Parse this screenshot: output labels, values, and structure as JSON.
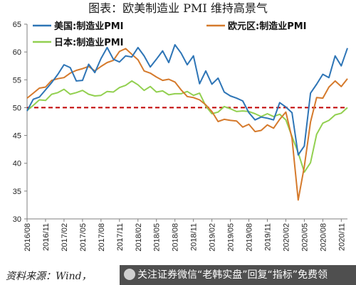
{
  "title": "图表：欧美制造业 PMI 维持高景气",
  "footer": {
    "source": "资料来源：Wind，",
    "banner": "关注证券微信“老韩实盘”回复“指标”免费领"
  },
  "colors": {
    "us": "#2e75b6",
    "eu": "#d57a2c",
    "jp": "#92d050",
    "ref": "#c00000",
    "axis": "#7f7f7f"
  },
  "chart_data": {
    "type": "line",
    "title": "图表：欧美制造业 PMI 维持高景气",
    "xlabel": "",
    "ylabel": "",
    "ylim": [
      30,
      65
    ],
    "yticks": [
      30,
      35,
      40,
      45,
      50,
      55,
      60,
      65
    ],
    "xtick_labels": [
      "2016/08",
      "2016/11",
      "2017/02",
      "2017/05",
      "2017/08",
      "2017/11",
      "2018/02",
      "2018/05",
      "2018/08",
      "2018/11",
      "2019/02",
      "2019/05",
      "2019/08",
      "2019/11",
      "2020/02",
      "2020/05",
      "2020/08",
      "2020/11"
    ],
    "legend_position": "top",
    "grid": false,
    "reference_line": {
      "y": 50,
      "style": "dashed"
    },
    "x": [
      "2016/08",
      "2016/09",
      "2016/10",
      "2016/11",
      "2016/12",
      "2017/01",
      "2017/02",
      "2017/03",
      "2017/04",
      "2017/05",
      "2017/06",
      "2017/07",
      "2017/08",
      "2017/09",
      "2017/10",
      "2017/11",
      "2017/12",
      "2018/01",
      "2018/02",
      "2018/03",
      "2018/04",
      "2018/05",
      "2018/06",
      "2018/07",
      "2018/08",
      "2018/09",
      "2018/10",
      "2018/11",
      "2018/12",
      "2019/01",
      "2019/02",
      "2019/03",
      "2019/04",
      "2019/05",
      "2019/06",
      "2019/07",
      "2019/08",
      "2019/09",
      "2019/10",
      "2019/11",
      "2019/12",
      "2020/01",
      "2020/02",
      "2020/03",
      "2020/04",
      "2020/05",
      "2020/06",
      "2020/07",
      "2020/08",
      "2020/09",
      "2020/10",
      "2020/11",
      "2020/12"
    ],
    "series": [
      {
        "name": "美国:制造业PMI",
        "color": "#2e75b6",
        "values": [
          49.4,
          51.5,
          51.9,
          53.2,
          54.5,
          56.0,
          57.7,
          57.2,
          54.8,
          54.9,
          57.8,
          56.3,
          58.8,
          60.8,
          58.7,
          58.2,
          59.3,
          59.1,
          60.8,
          59.3,
          57.3,
          58.7,
          60.2,
          58.1,
          61.3,
          59.8,
          57.7,
          59.3,
          54.3,
          56.6,
          54.2,
          55.3,
          52.8,
          52.1,
          51.7,
          51.2,
          49.1,
          47.8,
          48.3,
          48.1,
          47.8,
          50.9,
          50.1,
          49.1,
          41.5,
          43.1,
          52.6,
          54.2,
          56.0,
          55.4,
          59.3,
          57.5,
          60.7
        ]
      },
      {
        "name": "欧元区:制造业PMI",
        "color": "#d57a2c",
        "values": [
          51.7,
          52.6,
          53.5,
          53.7,
          54.9,
          55.2,
          55.4,
          56.2,
          56.7,
          57.0,
          57.4,
          56.6,
          57.4,
          58.1,
          58.5,
          60.1,
          60.6,
          59.6,
          58.6,
          56.6,
          56.2,
          55.5,
          54.9,
          55.1,
          54.6,
          53.2,
          52.0,
          51.8,
          51.4,
          50.5,
          49.3,
          47.5,
          47.9,
          47.7,
          47.6,
          46.5,
          47.0,
          45.7,
          45.9,
          46.9,
          46.3,
          47.9,
          49.2,
          44.5,
          33.4,
          39.4,
          47.4,
          51.8,
          51.7,
          53.7,
          54.8,
          53.8,
          55.2
        ]
      },
      {
        "name": "日本:制造业PMI",
        "color": "#92d050",
        "values": [
          49.5,
          50.4,
          51.4,
          51.3,
          52.4,
          52.7,
          53.3,
          52.4,
          52.7,
          53.1,
          52.4,
          52.1,
          52.2,
          52.9,
          52.8,
          53.6,
          54.0,
          54.8,
          54.1,
          53.1,
          53.8,
          52.8,
          53.0,
          52.3,
          52.5,
          52.5,
          52.9,
          52.2,
          52.6,
          50.3,
          48.9,
          49.2,
          50.2,
          49.8,
          49.3,
          49.4,
          49.3,
          48.9,
          48.4,
          48.9,
          48.4,
          48.8,
          47.8,
          44.8,
          41.9,
          38.4,
          40.1,
          45.2,
          47.2,
          47.7,
          48.7,
          49.0,
          50.0
        ]
      }
    ]
  }
}
